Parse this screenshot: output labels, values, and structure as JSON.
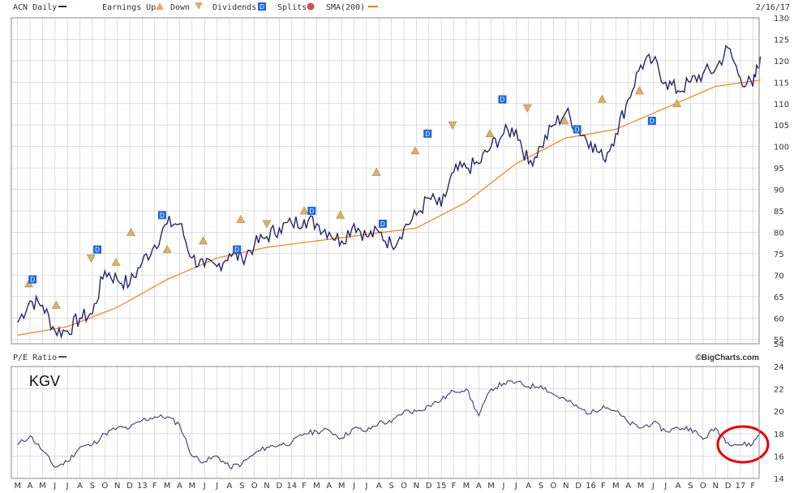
{
  "colors": {
    "price": "#262666",
    "sma": "#f08020",
    "pe": "#4a4a7a",
    "earnings": "#d8b070",
    "dividend": "#1f66d8",
    "splits": "#d05050",
    "grid": "#c9c9c9",
    "border": "#8a8a8a",
    "highlight_circle": "#e00000"
  },
  "legend": {
    "symbol": "ACN Daily",
    "earnings_up": "Earnings Up",
    "down": "Down",
    "dividends": "Dividends",
    "splits": "Splits",
    "sma": "SMA(200)",
    "date": "2/16/17"
  },
  "brand": "©BigCharts.com",
  "lower_title": "P/E Ratio",
  "annotation": "KGV",
  "dividend_marker_label": "D",
  "chart_data": [
    {
      "type": "line",
      "title": "ACN Daily",
      "x_tick_labels": [
        "M",
        "A",
        "M",
        "J",
        "J",
        "A",
        "S",
        "O",
        "N",
        "D",
        "13",
        "F",
        "M",
        "A",
        "M",
        "J",
        "J",
        "A",
        "S",
        "O",
        "N",
        "D",
        "14",
        "F",
        "M",
        "A",
        "M",
        "J",
        "J",
        "A",
        "S",
        "O",
        "N",
        "D",
        "15",
        "F",
        "M",
        "A",
        "M",
        "J",
        "J",
        "A",
        "S",
        "O",
        "N",
        "D",
        "16",
        "F",
        "M",
        "A",
        "M",
        "J",
        "J",
        "A",
        "S",
        "O",
        "N",
        "D",
        "17",
        "F"
      ],
      "y_ticks": [
        54,
        55,
        60,
        65,
        70,
        75,
        80,
        85,
        90,
        95,
        100,
        105,
        110,
        115,
        120,
        125,
        130
      ],
      "ylim": [
        54,
        130
      ],
      "grid": true,
      "series": [
        {
          "name": "ACN Daily",
          "x_month_index": [
            0,
            1,
            2,
            3,
            4,
            5,
            6,
            7,
            8,
            9,
            10,
            11,
            12,
            13,
            14,
            15,
            16,
            17,
            18,
            19,
            20,
            21,
            22,
            23,
            24,
            25,
            26,
            27,
            28,
            29,
            30,
            31,
            32,
            33,
            34,
            35,
            36,
            37,
            38,
            39,
            40,
            41,
            42,
            43,
            44,
            45,
            46,
            47,
            48,
            49,
            50,
            51,
            52,
            53,
            54,
            55,
            56,
            57,
            58,
            59,
            59.6
          ],
          "values": [
            59,
            64,
            63,
            57,
            57,
            60,
            61,
            71,
            69,
            68,
            73,
            77,
            82,
            82,
            74,
            72,
            72,
            75,
            74,
            77,
            79,
            81,
            82,
            83,
            82,
            80,
            78,
            82,
            79,
            80,
            77,
            81,
            84,
            88,
            86,
            94,
            95,
            96,
            100,
            103,
            104,
            96,
            100,
            105,
            108,
            104,
            101,
            97,
            103,
            111,
            119,
            120,
            115,
            113,
            115,
            117,
            118,
            123,
            116,
            114,
            121
          ]
        },
        {
          "name": "SMA(200)",
          "x_month_index": [
            0,
            4,
            8,
            12,
            16,
            20,
            24,
            28,
            32,
            36,
            40,
            44,
            48,
            52,
            56,
            59.6
          ],
          "values": [
            56,
            58,
            62.5,
            69,
            74,
            76.5,
            78,
            79.5,
            81,
            87,
            96,
            102,
            104,
            109,
            114,
            115.5
          ]
        }
      ],
      "earnings_markers": [
        {
          "x_month_index": 0.9,
          "value": 68,
          "dir": "up"
        },
        {
          "x_month_index": 3.1,
          "value": 63,
          "dir": "up"
        },
        {
          "x_month_index": 5.9,
          "value": 74,
          "dir": "down"
        },
        {
          "x_month_index": 7.9,
          "value": 73,
          "dir": "up"
        },
        {
          "x_month_index": 9.1,
          "value": 80,
          "dir": "up"
        },
        {
          "x_month_index": 12.0,
          "value": 76,
          "dir": "up"
        },
        {
          "x_month_index": 14.9,
          "value": 78,
          "dir": "up"
        },
        {
          "x_month_index": 17.9,
          "value": 83,
          "dir": "up"
        },
        {
          "x_month_index": 20.0,
          "value": 82,
          "dir": "down"
        },
        {
          "x_month_index": 23.0,
          "value": 85,
          "dir": "up"
        },
        {
          "x_month_index": 25.9,
          "value": 84,
          "dir": "up"
        },
        {
          "x_month_index": 28.8,
          "value": 94,
          "dir": "up"
        },
        {
          "x_month_index": 31.9,
          "value": 99,
          "dir": "up"
        },
        {
          "x_month_index": 34.9,
          "value": 105,
          "dir": "down"
        },
        {
          "x_month_index": 37.9,
          "value": 103,
          "dir": "up"
        },
        {
          "x_month_index": 40.9,
          "value": 109,
          "dir": "down"
        },
        {
          "x_month_index": 43.9,
          "value": 106,
          "dir": "up"
        },
        {
          "x_month_index": 46.9,
          "value": 111,
          "dir": "up"
        },
        {
          "x_month_index": 49.9,
          "value": 113,
          "dir": "up"
        },
        {
          "x_month_index": 52.9,
          "value": 110,
          "dir": "up"
        }
      ],
      "dividend_markers": [
        {
          "x_month_index": 1.2,
          "value": 69
        },
        {
          "x_month_index": 6.4,
          "value": 76
        },
        {
          "x_month_index": 11.6,
          "value": 84
        },
        {
          "x_month_index": 17.6,
          "value": 76
        },
        {
          "x_month_index": 23.6,
          "value": 85
        },
        {
          "x_month_index": 29.3,
          "value": 82
        },
        {
          "x_month_index": 32.9,
          "value": 103
        },
        {
          "x_month_index": 38.9,
          "value": 111
        },
        {
          "x_month_index": 44.9,
          "value": 104
        },
        {
          "x_month_index": 50.9,
          "value": 106
        }
      ]
    },
    {
      "type": "line",
      "title": "P/E Ratio",
      "y_ticks": [
        14,
        16,
        18,
        20,
        22,
        24
      ],
      "ylim": [
        14,
        24
      ],
      "grid": true,
      "series": [
        {
          "name": "P/E Ratio",
          "x_month_index": [
            0,
            1,
            2,
            3,
            4,
            5,
            6,
            7,
            8,
            9,
            10,
            11,
            12,
            13,
            14,
            15,
            16,
            17,
            18,
            19,
            20,
            21,
            22,
            23,
            24,
            25,
            26,
            27,
            28,
            29,
            30,
            31,
            32,
            33,
            34,
            35,
            36,
            37,
            38,
            39,
            40,
            41,
            42,
            43,
            44,
            45,
            46,
            47,
            48,
            49,
            50,
            51,
            52,
            53,
            54,
            55,
            56,
            57,
            58,
            59,
            59.6
          ],
          "values": [
            17,
            17.8,
            16.5,
            15,
            15.5,
            16.8,
            17,
            18,
            18.5,
            18.5,
            19.2,
            19.5,
            19.5,
            18.8,
            16,
            15.5,
            16,
            15,
            15.3,
            16.2,
            16.8,
            17,
            17.2,
            18,
            18.2,
            18.3,
            17.6,
            18.5,
            18.2,
            19,
            19,
            20,
            20,
            20.5,
            21,
            21.8,
            22,
            19.6,
            22,
            22.5,
            22.6,
            22.2,
            22.3,
            21.5,
            21,
            20.3,
            19.8,
            20.5,
            20,
            19,
            18.5,
            19,
            18.2,
            18.5,
            18.5,
            17.5,
            18.5,
            17.2,
            17.0,
            17.1,
            18.2
          ]
        }
      ]
    }
  ]
}
